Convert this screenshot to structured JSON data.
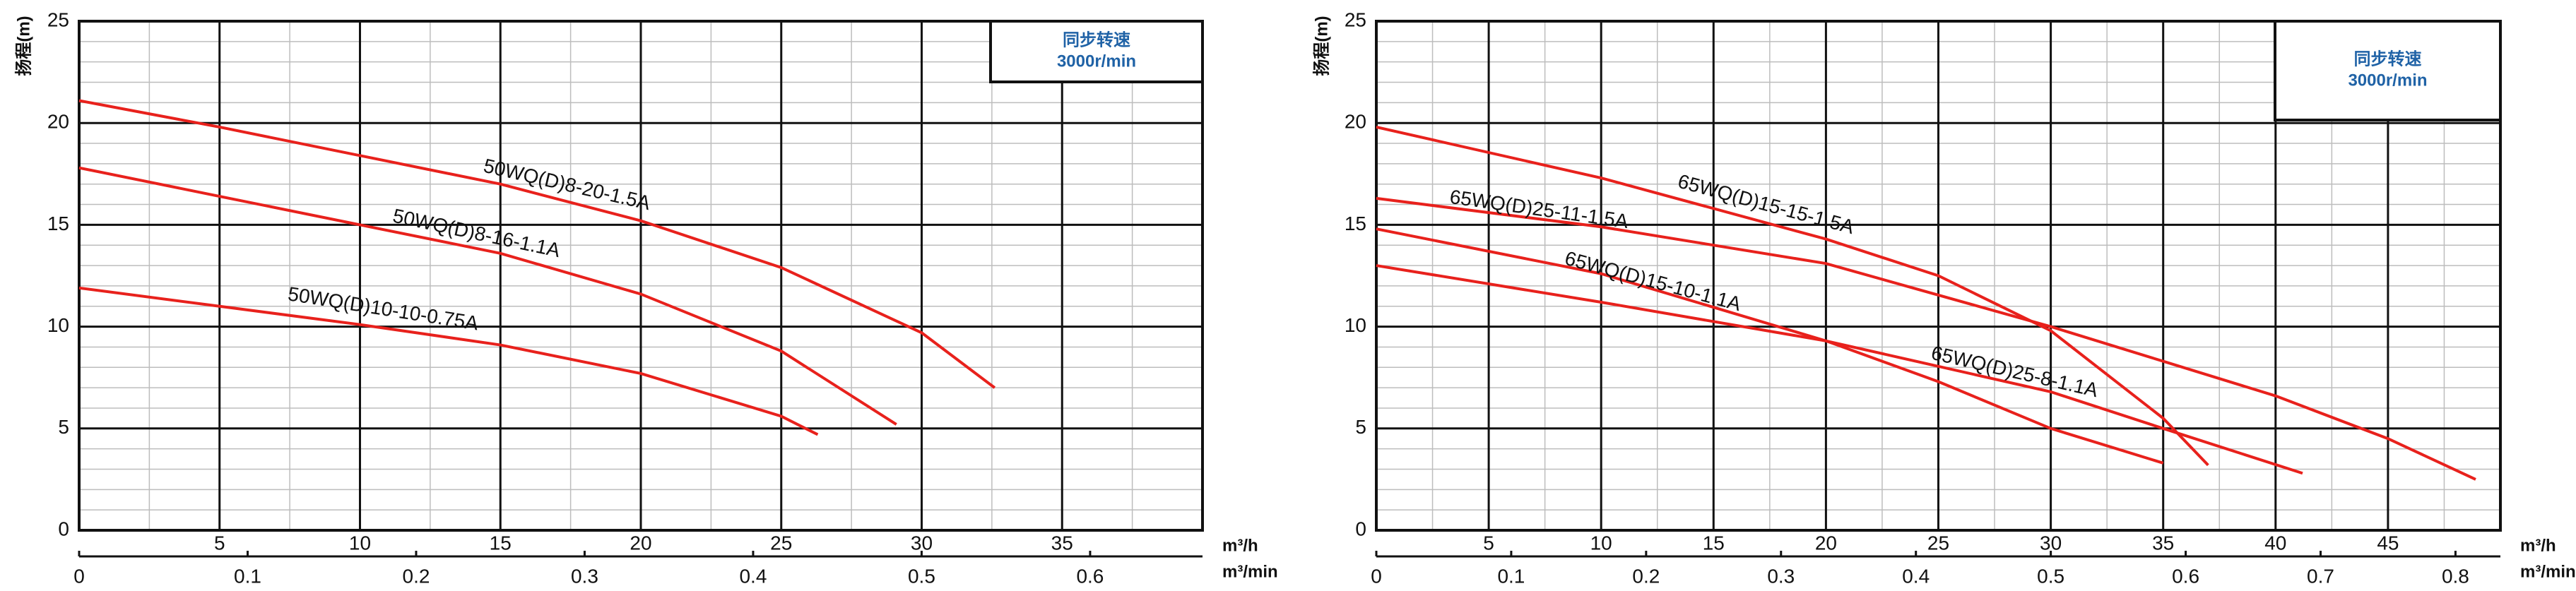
{
  "chart_data": [
    {
      "type": "line",
      "ylabel": "扬程(m)",
      "xlabel": "m³/h",
      "x2label": "m³/min",
      "legend_title": "同步转速",
      "legend_subtitle": "3000r/min",
      "xlim": [
        0,
        40
      ],
      "xticks": [
        5,
        10,
        15,
        20,
        25,
        30,
        35
      ],
      "x2lim": [
        0,
        0.6667
      ],
      "x2ticks": [
        0,
        0.1,
        0.2,
        0.3,
        0.4,
        0.5,
        0.6
      ],
      "ylim": [
        0,
        25
      ],
      "yticks": [
        0,
        5,
        10,
        15,
        20,
        25
      ],
      "grid": true,
      "minor_grid": true,
      "series": [
        {
          "name": "50WQ(D)8-20-1.5A",
          "color": "#e8211c",
          "x": [
            0,
            5,
            10,
            15,
            20,
            25,
            30,
            32.6
          ],
          "values": [
            21.1,
            19.8,
            18.4,
            17.0,
            15.2,
            12.9,
            9.7,
            7.0
          ]
        },
        {
          "name": "50WQ(D)8-16-1.1A",
          "color": "#e8211c",
          "x": [
            0,
            5,
            10,
            15,
            20,
            25,
            29.1
          ],
          "values": [
            17.8,
            16.4,
            15.0,
            13.6,
            11.6,
            8.8,
            5.2
          ]
        },
        {
          "name": "50WQ(D)10-10-0.75A",
          "color": "#e8211c",
          "x": [
            0,
            5,
            10,
            15,
            20,
            25,
            26.3
          ],
          "values": [
            11.9,
            11.0,
            10.1,
            9.1,
            7.7,
            5.6,
            4.7
          ]
        }
      ]
    },
    {
      "type": "line",
      "ylabel": "扬程(m)",
      "xlabel": "m³/h",
      "x2label": "m³/min",
      "legend_title": "同步转速",
      "legend_subtitle": "3000r/min",
      "xlim": [
        0,
        50
      ],
      "xticks": [
        5,
        10,
        15,
        20,
        25,
        30,
        35,
        40,
        45
      ],
      "x2lim": [
        0,
        0.8333
      ],
      "x2ticks": [
        0,
        0.1,
        0.2,
        0.3,
        0.4,
        0.5,
        0.6,
        0.7,
        0.8
      ],
      "ylim": [
        0,
        25
      ],
      "yticks": [
        0,
        5,
        10,
        15,
        20,
        25
      ],
      "grid": true,
      "minor_grid": true,
      "series": [
        {
          "name": "65WQ(D)15-15-1.5A",
          "color": "#e8211c",
          "x": [
            0,
            10,
            20,
            25,
            30,
            35,
            37.0
          ],
          "values": [
            19.8,
            17.3,
            14.3,
            12.5,
            9.8,
            5.5,
            3.2
          ]
        },
        {
          "name": "65WQ(D)25-11-1.5A",
          "color": "#e8211c",
          "x": [
            0,
            10,
            20,
            30,
            40,
            45,
            48.9
          ],
          "values": [
            16.3,
            14.9,
            13.1,
            10.0,
            6.6,
            4.5,
            2.5
          ]
        },
        {
          "name": "65WQ(D)15-10-1.1A",
          "color": "#e8211c",
          "x": [
            0,
            10,
            20,
            25,
            30,
            35.0
          ],
          "values": [
            14.8,
            12.6,
            9.3,
            7.3,
            5.0,
            3.3
          ]
        },
        {
          "name": "65WQ(D)25-8-1.1A",
          "color": "#e8211c",
          "x": [
            0,
            10,
            20,
            30,
            35,
            41.2
          ],
          "values": [
            13.0,
            11.2,
            9.3,
            6.8,
            5.0,
            2.8
          ]
        }
      ]
    }
  ]
}
